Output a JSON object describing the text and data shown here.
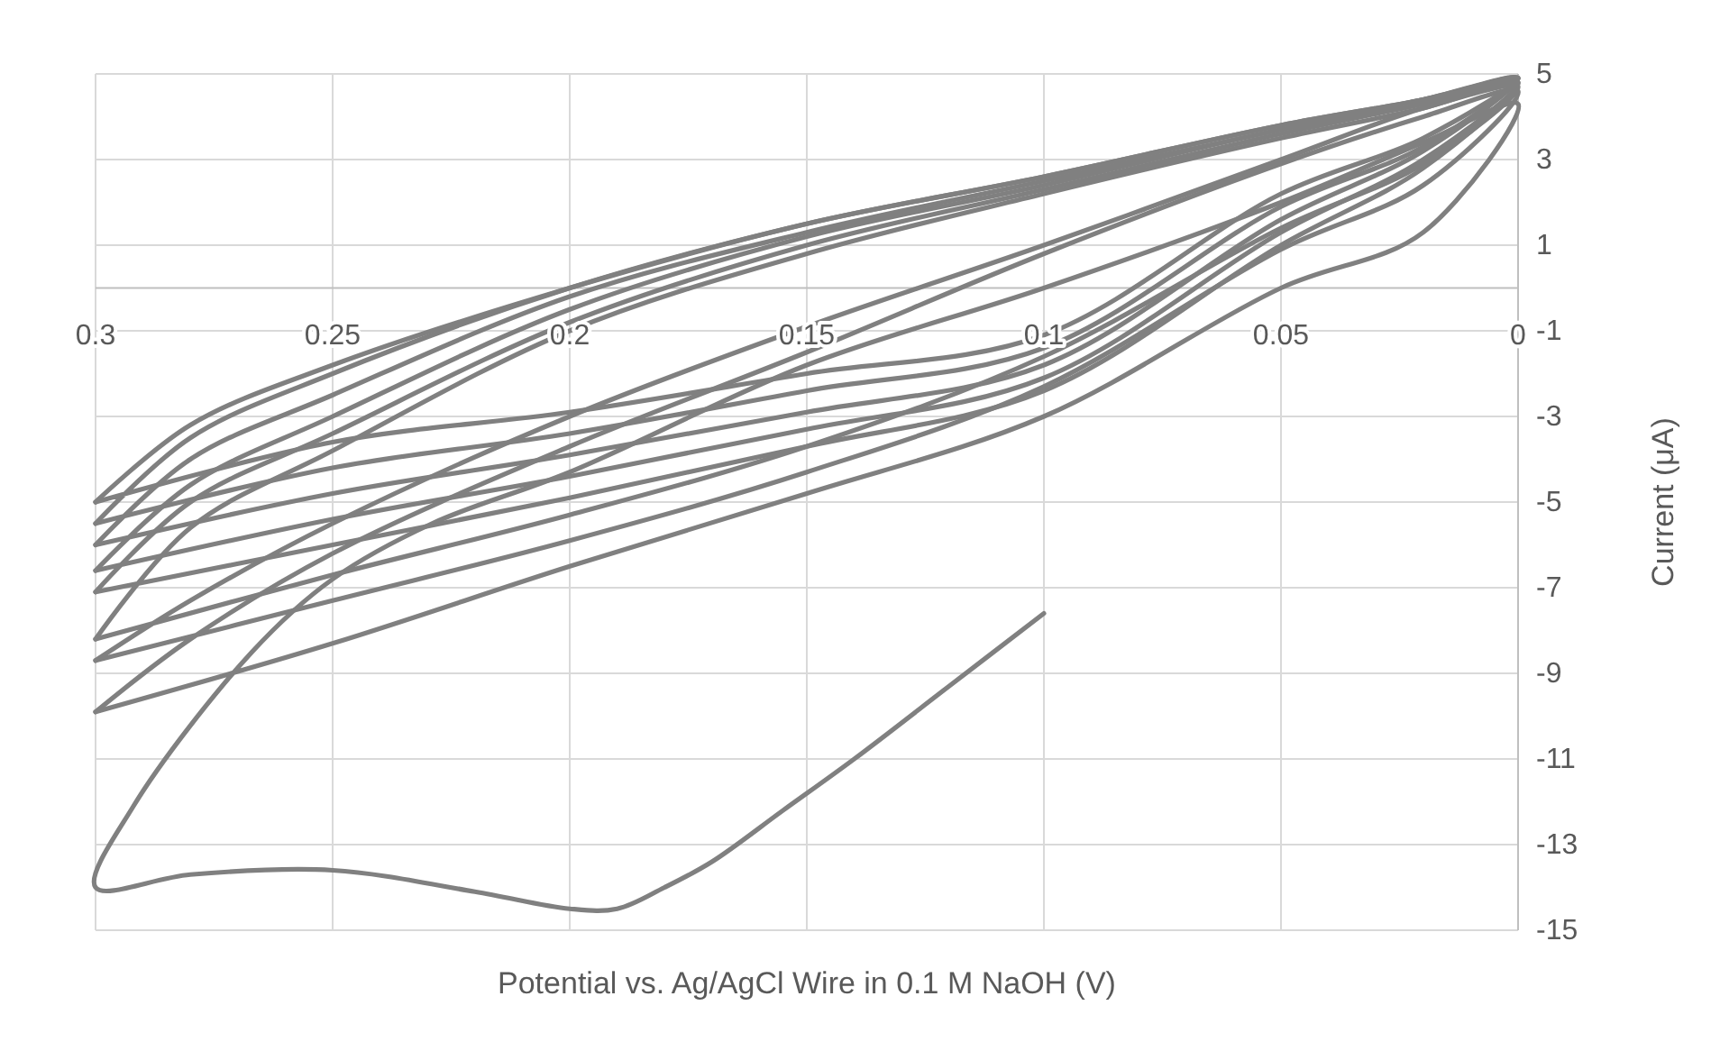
{
  "chart_data": {
    "type": "line",
    "xlabel": "Potential vs. Ag/AgCl Wire in 0.1 M NaOH (V)",
    "ylabel": "Current (μA)",
    "xlim": [
      0.3,
      0
    ],
    "xticks": [
      0.3,
      0.25,
      0.2,
      0.15,
      0.1,
      0.05,
      0
    ],
    "ylim": [
      -15,
      5
    ],
    "yticks": [
      5,
      3,
      1,
      -1,
      -3,
      -5,
      -7,
      -9,
      -11,
      -13,
      -15
    ],
    "grid": true,
    "series": [
      {
        "color": "#808080",
        "x": [
          0.1,
          0.12,
          0.14,
          0.155,
          0.17,
          0.18,
          0.19,
          0.2,
          0.22,
          0.25,
          0.28,
          0.3,
          0.292,
          0.267,
          0.25,
          0.229,
          0.2,
          0.15,
          0.1,
          0.05,
          0.02,
          0,
          0.02,
          0.05,
          0.1,
          0.15,
          0.2,
          0.25,
          0.3
        ],
        "values": [
          -7.6,
          -9.3,
          -11.0,
          -12.2,
          -13.4,
          -14.0,
          -14.5,
          -14.5,
          -14.1,
          -13.6,
          -13.7,
          -14.0,
          -12.1,
          -8.5,
          -6.8,
          -5.5,
          -4.3,
          -1.8,
          0.0,
          2.0,
          3.4,
          4.3,
          1.3,
          0.0,
          -3.0,
          -4.8,
          -6.5,
          -8.3,
          -9.9
        ]
      },
      {
        "color": "#808080",
        "x": [
          0.3,
          0.28,
          0.25,
          0.2,
          0.15,
          0.1,
          0.05,
          0.02,
          0,
          0.02,
          0.05,
          0.1,
          0.15,
          0.2,
          0.25,
          0.3
        ],
        "values": [
          -9.9,
          -8.2,
          -6.2,
          -3.7,
          -1.5,
          0.8,
          2.9,
          4.0,
          4.6,
          2.4,
          0.9,
          -2.3,
          -4.3,
          -5.9,
          -7.3,
          -8.7
        ]
      },
      {
        "color": "#808080",
        "x": [
          0.3,
          0.28,
          0.25,
          0.2,
          0.15,
          0.1,
          0.05,
          0.02,
          0,
          0.02,
          0.05,
          0.1,
          0.15,
          0.2,
          0.25,
          0.3
        ],
        "values": [
          -8.7,
          -7.3,
          -5.5,
          -3.0,
          -0.9,
          1.0,
          3.0,
          4.2,
          4.7,
          2.9,
          1.4,
          -1.6,
          -3.7,
          -5.3,
          -6.7,
          -8.2
        ]
      },
      {
        "color": "#808080",
        "x": [
          0.3,
          0.28,
          0.25,
          0.2,
          0.15,
          0.1,
          0.05,
          0.02,
          0,
          0.02,
          0.05,
          0.1,
          0.15,
          0.2,
          0.25,
          0.3
        ],
        "values": [
          -8.2,
          -5.6,
          -3.8,
          -1.0,
          0.8,
          2.2,
          3.5,
          4.2,
          4.8,
          2.8,
          1.0,
          -2.4,
          -3.7,
          -4.9,
          -6.0,
          -7.1
        ]
      },
      {
        "color": "#808080",
        "x": [
          0.3,
          0.28,
          0.25,
          0.2,
          0.15,
          0.1,
          0.05,
          0.02,
          0,
          0.02,
          0.05,
          0.1,
          0.15,
          0.2,
          0.25,
          0.3
        ],
        "values": [
          -7.1,
          -5.0,
          -3.4,
          -0.8,
          1.0,
          2.3,
          3.6,
          4.3,
          4.8,
          3.0,
          1.3,
          -2.1,
          -3.3,
          -4.4,
          -5.4,
          -6.6
        ]
      },
      {
        "color": "#808080",
        "x": [
          0.3,
          0.28,
          0.25,
          0.2,
          0.15,
          0.1,
          0.05,
          0.02,
          0,
          0.02,
          0.05,
          0.1,
          0.15,
          0.2,
          0.25,
          0.3
        ],
        "values": [
          -6.6,
          -4.6,
          -3.0,
          -0.5,
          1.2,
          2.4,
          3.7,
          4.3,
          4.9,
          3.2,
          1.6,
          -1.8,
          -2.9,
          -3.9,
          -4.8,
          -6.0
        ]
      },
      {
        "color": "#808080",
        "x": [
          0.3,
          0.28,
          0.25,
          0.2,
          0.15,
          0.1,
          0.05,
          0.02,
          0,
          0.02,
          0.05,
          0.1,
          0.15,
          0.2,
          0.25,
          0.3
        ],
        "values": [
          -6.0,
          -4.0,
          -2.5,
          -0.2,
          1.3,
          2.5,
          3.7,
          4.4,
          4.9,
          3.3,
          1.9,
          -1.4,
          -2.4,
          -3.4,
          -4.2,
          -5.5
        ]
      },
      {
        "color": "#808080",
        "x": [
          0.3,
          0.28,
          0.25,
          0.2,
          0.15,
          0.1,
          0.05,
          0.02,
          0,
          0.02,
          0.05,
          0.1,
          0.15,
          0.2,
          0.25,
          0.3
        ],
        "values": [
          -5.5,
          -3.5,
          -2.0,
          0.0,
          1.5,
          2.6,
          3.8,
          4.4,
          4.9,
          3.5,
          2.2,
          -1.1,
          -2.0,
          -2.9,
          -3.6,
          -5.0
        ]
      },
      {
        "color": "#808080",
        "x": [
          0.3,
          0.28,
          0.25,
          0.2,
          0.15,
          0.1,
          0.05,
          0.02,
          0
        ],
        "values": [
          -5.0,
          -3.2,
          -1.8,
          0.0,
          1.5,
          2.6,
          3.8,
          4.4,
          4.9
        ]
      }
    ]
  }
}
